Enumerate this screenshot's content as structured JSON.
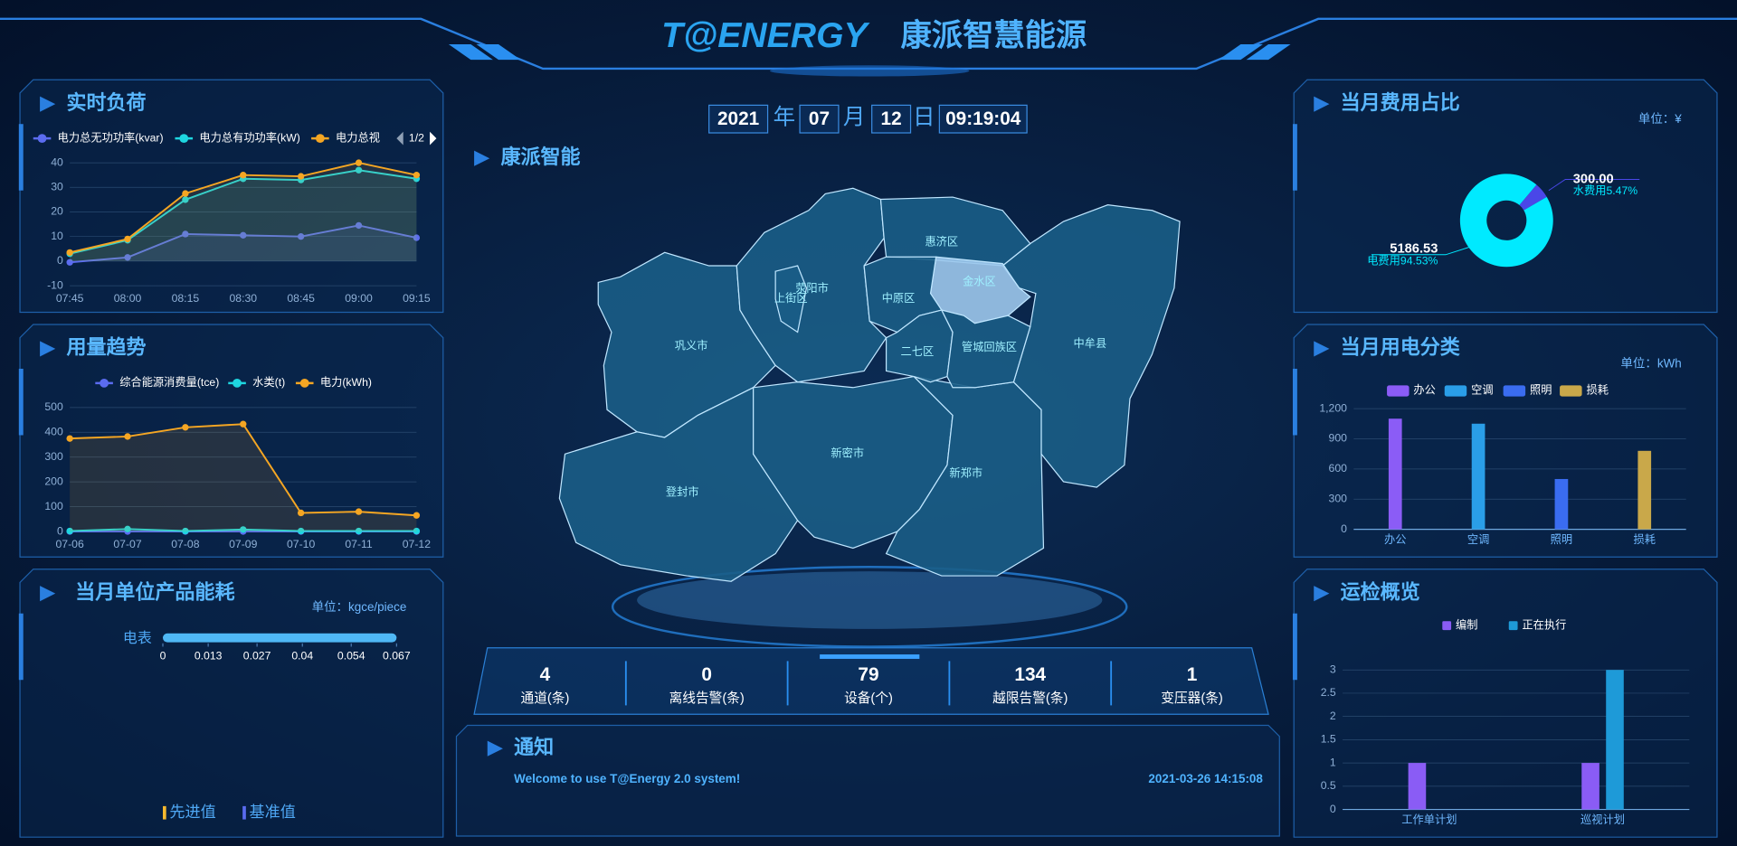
{
  "header": {
    "logo": "T@ENERGY",
    "title": "康派智慧能源"
  },
  "datetime": {
    "year": "2021",
    "year_unit": "年",
    "month": "07",
    "month_unit": "月",
    "day": "12",
    "day_unit": "日",
    "time": "09:19:04"
  },
  "map": {
    "title": "康派智能",
    "regions": [
      {
        "name": "巩义市"
      },
      {
        "name": "登封市"
      },
      {
        "name": "新密市"
      },
      {
        "name": "新郑市"
      },
      {
        "name": "中牟县"
      },
      {
        "name": "荥阳市"
      },
      {
        "name": "上街区"
      },
      {
        "name": "惠济区"
      },
      {
        "name": "金水区"
      },
      {
        "name": "中原区"
      },
      {
        "name": "二七区"
      },
      {
        "name": "管城回族区"
      }
    ]
  },
  "stats": [
    {
      "value": 4,
      "label": "通道(条)"
    },
    {
      "value": 0,
      "label": "离线告警(条)"
    },
    {
      "value": 79,
      "label": "设备(个)"
    },
    {
      "value": 134,
      "label": "越限告警(条)"
    },
    {
      "value": 1,
      "label": "变压器(条)"
    }
  ],
  "notice": {
    "title": "通知",
    "message": "Welcome to use T@Energy 2.0 system!",
    "time": "2021-03-26 14:15:08"
  },
  "chart_data": [
    {
      "type": "line",
      "title": "实时负荷",
      "categories": [
        "07:45",
        "08:00",
        "08:15",
        "08:30",
        "08:45",
        "09:00",
        "09:15"
      ],
      "series": [
        {
          "name": "电力总无功功率(kvar)",
          "color": "#5b6cf0",
          "values": [
            -0.5,
            1.5,
            11,
            10.5,
            10,
            14.5,
            9.5
          ]
        },
        {
          "name": "电力总有功功率(kW)",
          "color": "#1ed6e0",
          "values": [
            3,
            8.5,
            25,
            33.5,
            33,
            37,
            33.5
          ]
        },
        {
          "name": "电力总视",
          "color": "#f5a623",
          "values": [
            3.5,
            9,
            27.5,
            35,
            34.5,
            40,
            35
          ]
        }
      ],
      "ylim": [
        -10,
        40
      ],
      "yticks": [
        -10,
        0,
        10,
        20,
        30,
        40
      ],
      "grid": true,
      "area": true,
      "legend_page": "1/2"
    },
    {
      "type": "line",
      "title": "用量趋势",
      "categories": [
        "07-06",
        "07-07",
        "07-08",
        "07-09",
        "07-10",
        "07-11",
        "07-12"
      ],
      "series": [
        {
          "name": "综合能源消费量(tce)",
          "color": "#5b6cf0",
          "values": [
            0,
            0,
            0,
            0,
            0,
            0,
            0
          ]
        },
        {
          "name": "水类(t)",
          "color": "#1ed6e0",
          "values": [
            2,
            10,
            2,
            8,
            2,
            2,
            2
          ]
        },
        {
          "name": "电力(kWh)",
          "color": "#f5a623",
          "values": [
            375,
            383,
            420,
            433,
            75,
            80,
            65
          ]
        }
      ],
      "ylim": [
        0,
        500
      ],
      "yticks": [
        0,
        100,
        200,
        300,
        400,
        500
      ],
      "grid": true,
      "area": true
    },
    {
      "type": "hbar",
      "title": "当月单位产品能耗",
      "unit": "单位：kgce/piece",
      "categories": [
        "电表"
      ],
      "values": [
        0.067
      ],
      "color": "#4fb8f5",
      "xlim": [
        0,
        0.067
      ],
      "xticks": [
        0,
        0.013,
        0.027,
        0.04,
        0.054,
        0.067
      ],
      "legend": [
        {
          "name": "先进值",
          "color": "#f5b82e"
        },
        {
          "name": "基准值",
          "color": "#5a6cf0"
        }
      ]
    },
    {
      "type": "pie",
      "title": "当月费用占比",
      "unit": "单位：¥",
      "categories": [
        "水费用",
        "电费用"
      ],
      "values": [
        300,
        5186.53
      ],
      "value_labels": [
        "300.00",
        "5186.53"
      ],
      "percent_labels": [
        "水费用5.47%",
        "电费用94.53%"
      ],
      "colors": [
        "#4a47e8",
        "#00eaff"
      ]
    },
    {
      "type": "bar",
      "title": "当月用电分类",
      "unit": "单位：kWh",
      "categories": [
        "办公",
        "空调",
        "照明",
        "损耗"
      ],
      "values": [
        1100,
        1050,
        500,
        780
      ],
      "colors": [
        "#8b5cf6",
        "#2a9ee8",
        "#3a6cf0",
        "#c9a84a"
      ],
      "ylim": [
        0,
        1200
      ],
      "yticks": [
        0,
        300,
        600,
        900,
        {
          "value": 1200,
          "label": "1,200"
        }
      ],
      "grid": true
    },
    {
      "type": "bar",
      "title": "运检概览",
      "categories": [
        "工作单计划",
        "巡视计划"
      ],
      "series": [
        {
          "name": "编制",
          "color": "#8a5cf5",
          "values": [
            1,
            1
          ]
        },
        {
          "name": "正在执行",
          "color": "#1e9ad8",
          "values": [
            0,
            3
          ]
        }
      ],
      "ylim": [
        0,
        3
      ],
      "yticks": [
        0,
        0.5,
        1,
        1.5,
        2,
        2.5,
        3
      ],
      "grid": true
    }
  ]
}
